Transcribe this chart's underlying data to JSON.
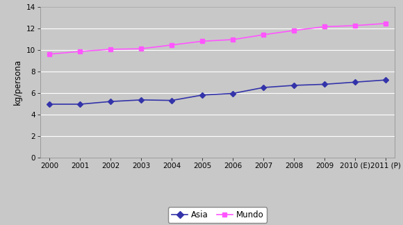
{
  "years": [
    "2000",
    "2001",
    "2002",
    "2003",
    "2004",
    "2005",
    "2006",
    "2007",
    "2008",
    "2009",
    "2010 (E)",
    "2011 (P)"
  ],
  "asia": [
    4.95,
    4.95,
    5.2,
    5.35,
    5.3,
    5.8,
    5.95,
    6.5,
    6.7,
    6.8,
    7.0,
    7.2
  ],
  "mundo": [
    9.6,
    9.85,
    10.05,
    10.1,
    10.45,
    10.8,
    10.95,
    11.4,
    11.8,
    12.15,
    12.25,
    12.45
  ],
  "asia_color": "#3333AA",
  "mundo_color": "#FF55FF",
  "bg_color": "#C8C8C8",
  "grid_color": "#FFFFFF",
  "ylabel": "kg/persona",
  "ylim": [
    0,
    14
  ],
  "yticks": [
    0,
    2,
    4,
    6,
    8,
    10,
    12,
    14
  ],
  "legend_asia": "Asia",
  "legend_mundo": "Mundo",
  "marker_asia": "D",
  "marker_mundo": "s",
  "marker_size_asia": 4,
  "marker_size_mundo": 5,
  "linewidth": 1.2
}
